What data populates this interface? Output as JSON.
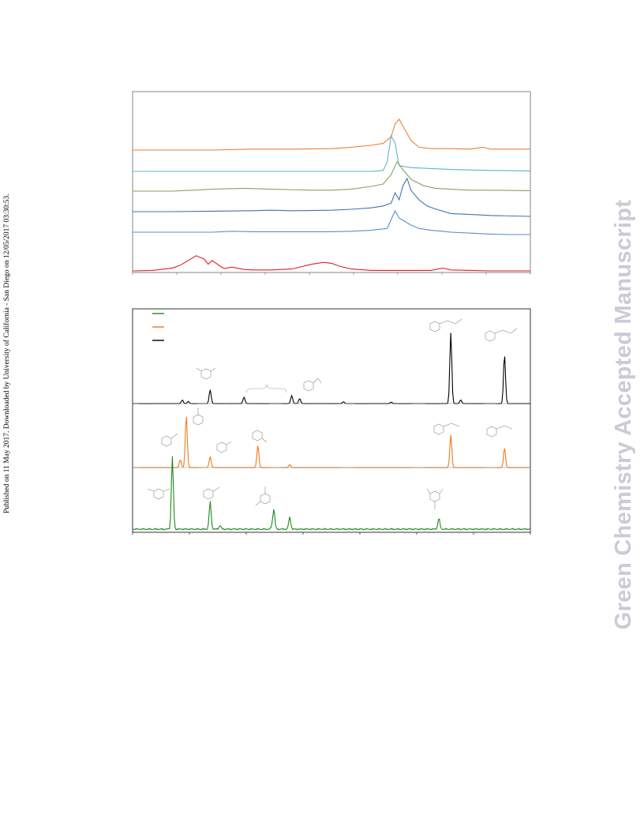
{
  "sidebar": {
    "published_note": "Published on 11 May 2017. Downloaded by University of California - San Diego on 12/05/2017 03:30:53."
  },
  "watermark": {
    "text": "Green Chemistry Accepted Manuscript"
  },
  "colors": {
    "orange": "#f07f32",
    "teal": "#5fb3c4",
    "olive": "#8aa35a",
    "steel": "#3f74ad",
    "lightsteel": "#5a8fc4",
    "red": "#e02020",
    "green": "#1f8a1f",
    "amber": "#f07a1a",
    "black": "#000000"
  },
  "chart_data": [
    {
      "type": "line",
      "title": "",
      "xlabel": "",
      "ylabel": "",
      "series": [
        {
          "name": "",
          "color": "orange",
          "baseline": 0,
          "x": [
            0,
            0.1,
            0.2,
            0.3,
            0.4,
            0.5,
            0.55,
            0.6,
            0.63,
            0.65,
            0.66,
            0.67,
            0.68,
            0.7,
            0.72,
            0.75,
            0.8,
            0.85,
            0.88,
            0.9,
            0.95,
            1.0
          ],
          "y": [
            0,
            0,
            0,
            0.02,
            0.02,
            0.03,
            0.06,
            0.1,
            0.14,
            0.28,
            0.55,
            0.65,
            0.5,
            0.2,
            0.06,
            0.03,
            0.03,
            0.02,
            0.06,
            0.02,
            0.02,
            0.02
          ]
        },
        {
          "name": "",
          "color": "teal",
          "baseline": 1,
          "x": [
            0,
            0.1,
            0.2,
            0.3,
            0.4,
            0.5,
            0.55,
            0.6,
            0.63,
            0.64,
            0.65,
            0.66,
            0.67,
            0.7,
            0.75,
            0.8,
            0.85,
            0.9,
            1.0
          ],
          "y": [
            0,
            0,
            0,
            0,
            0,
            0,
            0,
            0,
            0.02,
            0.2,
            0.75,
            0.6,
            0.12,
            0.08,
            0.06,
            0.04,
            0.03,
            0.02,
            0.01
          ]
        },
        {
          "name": "",
          "color": "olive",
          "baseline": 2,
          "x": [
            0,
            0.1,
            0.15,
            0.2,
            0.28,
            0.35,
            0.45,
            0.5,
            0.55,
            0.6,
            0.63,
            0.65,
            0.665,
            0.68,
            0.7,
            0.73,
            0.76,
            0.8,
            0.85,
            0.9,
            1.0
          ],
          "y": [
            0,
            0,
            0.02,
            0.04,
            0.06,
            0.04,
            0.02,
            0.02,
            0.04,
            0.1,
            0.15,
            0.35,
            0.62,
            0.45,
            0.25,
            0.12,
            0.06,
            0.04,
            0.02,
            0.02,
            0.01
          ]
        },
        {
          "name": "",
          "color": "steel",
          "baseline": 3,
          "x": [
            0,
            0.1,
            0.2,
            0.3,
            0.35,
            0.4,
            0.5,
            0.55,
            0.6,
            0.63,
            0.65,
            0.66,
            0.67,
            0.68,
            0.69,
            0.7,
            0.72,
            0.74,
            0.76,
            0.8,
            0.85,
            0.9,
            1.0
          ],
          "y": [
            0,
            0,
            0.01,
            0.02,
            0.03,
            0.02,
            0.03,
            0.05,
            0.08,
            0.12,
            0.18,
            0.4,
            0.25,
            0.55,
            0.7,
            0.45,
            0.25,
            0.12,
            0.06,
            -0.04,
            -0.06,
            -0.08,
            -0.1
          ]
        },
        {
          "name": "",
          "color": "lightsteel",
          "baseline": 4,
          "x": [
            0,
            0.1,
            0.2,
            0.25,
            0.3,
            0.4,
            0.5,
            0.55,
            0.6,
            0.64,
            0.66,
            0.67,
            0.68,
            0.7,
            0.72,
            0.75,
            0.78,
            0.8,
            0.85,
            0.9,
            0.95,
            1.0
          ],
          "y": [
            0,
            0,
            0,
            0.02,
            0.01,
            0.01,
            0.01,
            0.02,
            0.04,
            0.08,
            0.45,
            0.3,
            0.25,
            0.15,
            0.08,
            0.04,
            0.02,
            0,
            -0.02,
            -0.04,
            -0.05,
            -0.05
          ]
        },
        {
          "name": "",
          "color": "red",
          "baseline": 5,
          "x": [
            0,
            0.05,
            0.1,
            0.12,
            0.14,
            0.16,
            0.18,
            0.19,
            0.2,
            0.22,
            0.23,
            0.25,
            0.28,
            0.3,
            0.35,
            0.4,
            0.45,
            0.48,
            0.5,
            0.52,
            0.55,
            0.6,
            0.65,
            0.7,
            0.75,
            0.78,
            0.8,
            0.85,
            0.9,
            1.0
          ],
          "y": [
            0,
            0.01,
            0.06,
            0.12,
            0.22,
            0.32,
            0.25,
            0.14,
            0.22,
            0.1,
            0.05,
            0.08,
            0.03,
            0.02,
            0.02,
            0.04,
            0.14,
            0.18,
            0.16,
            0.1,
            0.04,
            0.01,
            0.01,
            0.01,
            0.01,
            0.06,
            0.02,
            0.01,
            0,
            0
          ]
        }
      ]
    },
    {
      "type": "line",
      "title": "",
      "xlabel": "",
      "ylabel": "",
      "legend": [
        {
          "name": "",
          "color": "green"
        },
        {
          "name": "",
          "color": "amber"
        },
        {
          "name": "",
          "color": "black"
        }
      ],
      "series": [
        {
          "name": "",
          "color": "black",
          "baseline": 0,
          "peaks": [
            [
              0.125,
              0.1
            ],
            [
              0.14,
              0.06
            ],
            [
              0.195,
              0.38
            ],
            [
              0.28,
              0.18
            ],
            [
              0.4,
              0.22
            ],
            [
              0.42,
              0.14
            ],
            [
              0.53,
              0.05
            ],
            [
              0.65,
              0.04
            ],
            [
              0.8,
              1.95
            ],
            [
              0.825,
              0.1
            ],
            [
              0.935,
              1.35
            ]
          ]
        },
        {
          "name": "",
          "color": "amber",
          "baseline": 1,
          "peaks": [
            [
              0.12,
              0.22
            ],
            [
              0.135,
              1.45
            ],
            [
              0.195,
              0.3
            ],
            [
              0.315,
              0.62
            ],
            [
              0.395,
              0.08
            ],
            [
              0.8,
              0.9
            ],
            [
              0.935,
              0.55
            ]
          ]
        },
        {
          "name": "",
          "color": "green",
          "baseline": 2,
          "peaks": [
            [
              0.1,
              2.0
            ],
            [
              0.22,
              0.1
            ],
            [
              0.195,
              0.75
            ],
            [
              0.35,
              0.05
            ],
            [
              0.355,
              0.55
            ],
            [
              0.395,
              0.33
            ],
            [
              0.77,
              0.3
            ]
          ]
        }
      ]
    }
  ]
}
